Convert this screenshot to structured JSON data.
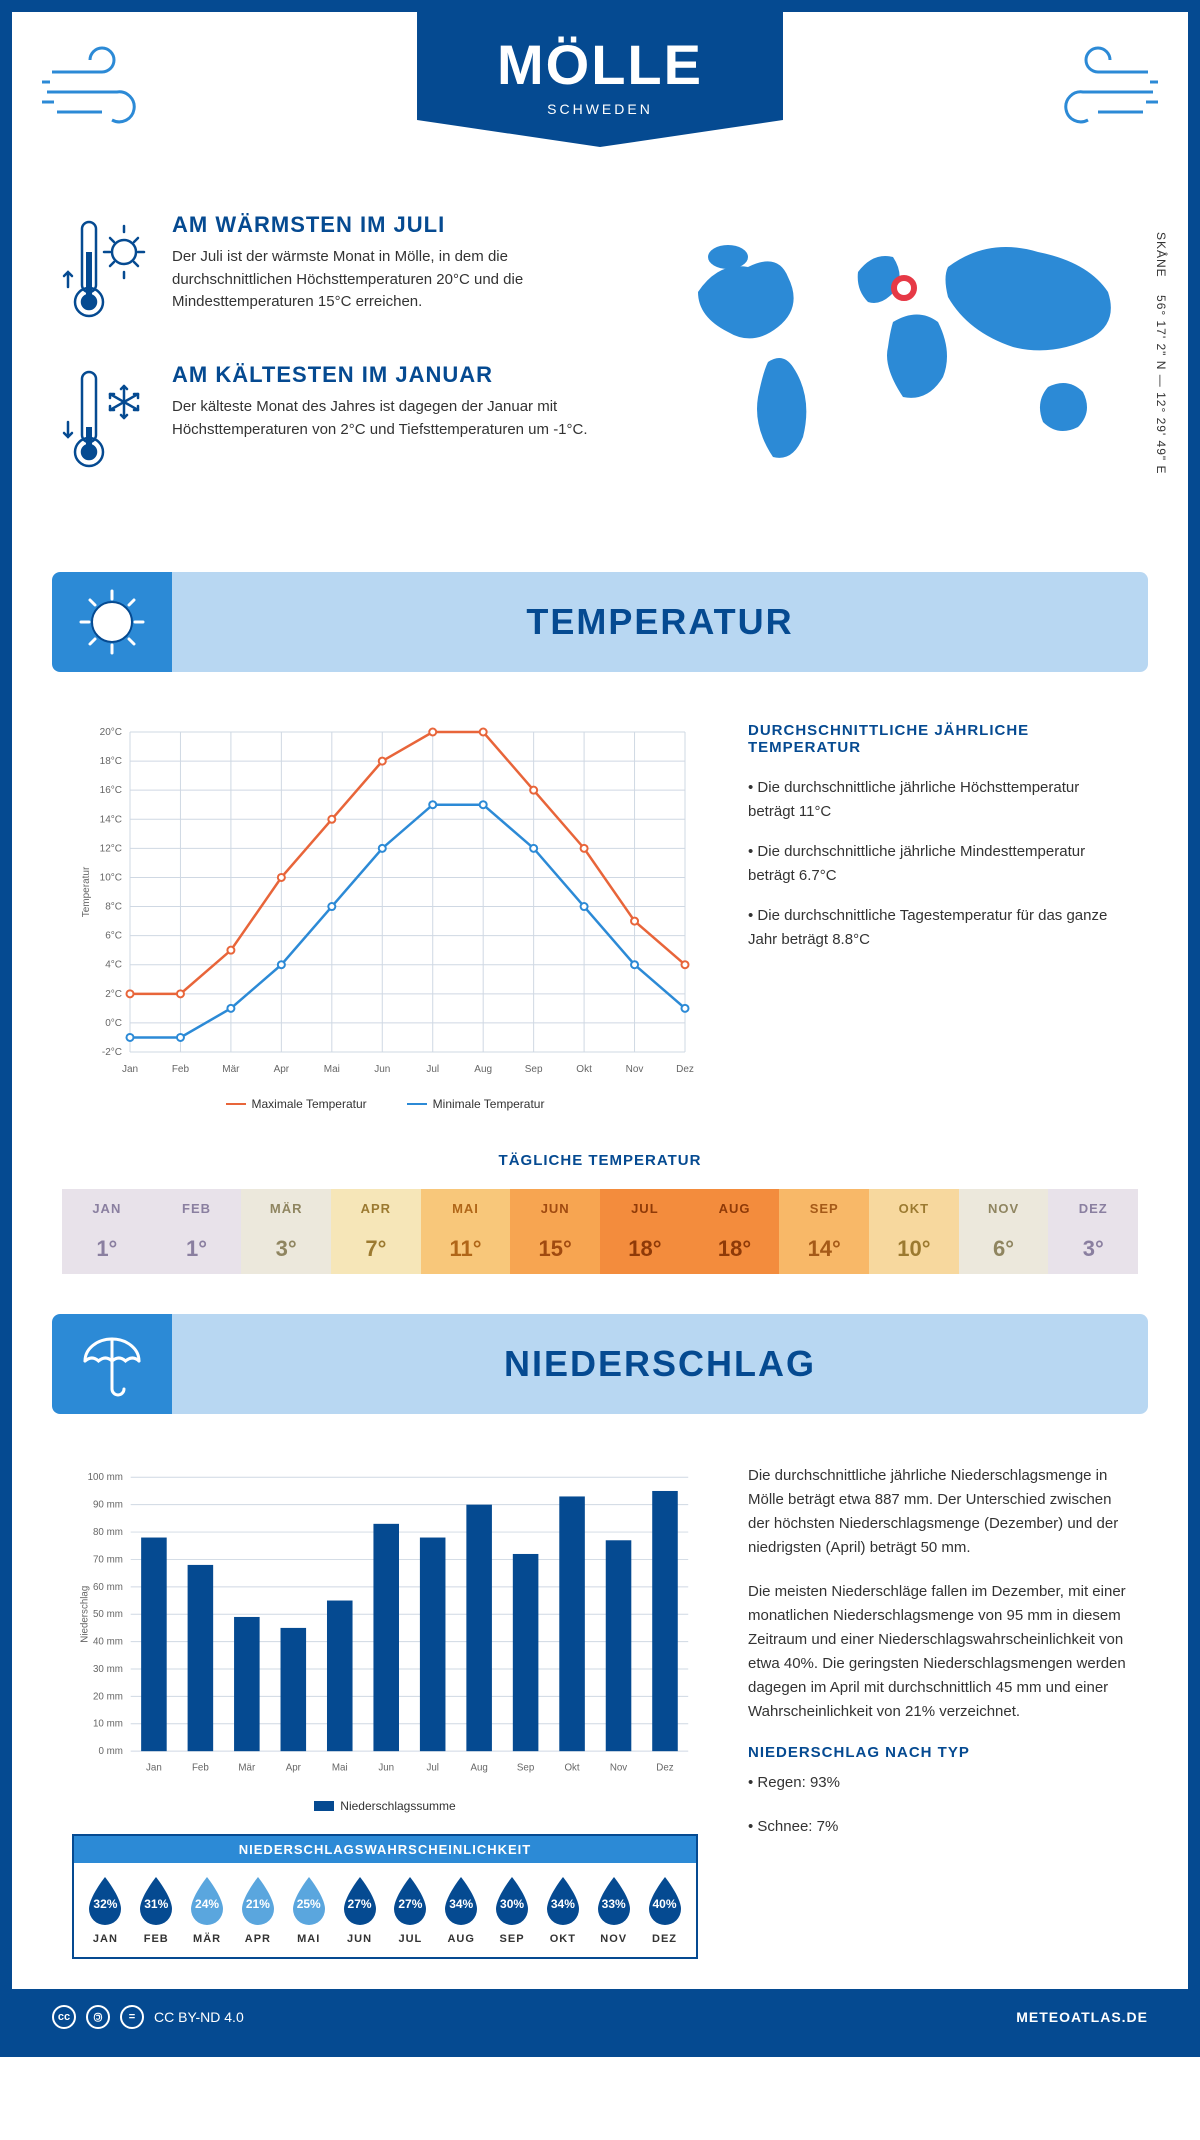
{
  "header": {
    "title": "MÖLLE",
    "country": "SCHWEDEN"
  },
  "coords": {
    "lat": "56° 17' 2\" N",
    "lon": "12° 29' 49\" E",
    "region": "SKÅNE"
  },
  "facts": {
    "warm": {
      "title": "AM WÄRMSTEN IM JULI",
      "text": "Der Juli ist der wärmste Monat in Mölle, in dem die durchschnittlichen Höchsttemperaturen 20°C und die Mindesttemperaturen 15°C erreichen."
    },
    "cold": {
      "title": "AM KÄLTESTEN IM JANUAR",
      "text": "Der kälteste Monat des Jahres ist dagegen der Januar mit Höchsttemperaturen von 2°C und Tiefsttemperaturen um -1°C."
    }
  },
  "colors": {
    "primary": "#054a91",
    "accent": "#2c8ad6",
    "light": "#b8d7f2",
    "high_line": "#e8653a",
    "low_line": "#2c8ad6",
    "bar": "#054a91",
    "grid": "#cfd8e3",
    "drop_dark": "#054a91",
    "drop_light": "#5aa6de",
    "marker": "#e63946"
  },
  "sections": {
    "temp": "TEMPERATUR",
    "precip": "NIEDERSCHLAG"
  },
  "temp_chart": {
    "type": "line",
    "months": [
      "Jan",
      "Feb",
      "Mär",
      "Apr",
      "Mai",
      "Jun",
      "Jul",
      "Aug",
      "Sep",
      "Okt",
      "Nov",
      "Dez"
    ],
    "max": [
      2,
      2,
      5,
      10,
      14,
      18,
      20,
      20,
      16,
      12,
      7,
      4
    ],
    "min": [
      -1,
      -1,
      1,
      4,
      8,
      12,
      15,
      15,
      12,
      8,
      4,
      1
    ],
    "ylim": [
      -2,
      20
    ],
    "ytick_step": 2,
    "ylabel": "Temperatur",
    "legend_max": "Maximale Temperatur",
    "legend_min": "Minimale Temperatur"
  },
  "temp_text": {
    "title": "DURCHSCHNITTLICHE JÄHRLICHE TEMPERATUR",
    "b1": "• Die durchschnittliche jährliche Höchsttemperatur beträgt 11°C",
    "b2": "• Die durchschnittliche jährliche Mindesttemperatur beträgt 6.7°C",
    "b3": "• Die durchschnittliche Tagestemperatur für das ganze Jahr beträgt 8.8°C"
  },
  "daily": {
    "title": "TÄGLICHE TEMPERATUR",
    "months": [
      "JAN",
      "FEB",
      "MÄR",
      "APR",
      "MAI",
      "JUN",
      "JUL",
      "AUG",
      "SEP",
      "OKT",
      "NOV",
      "DEZ"
    ],
    "values": [
      "1°",
      "1°",
      "3°",
      "7°",
      "11°",
      "15°",
      "18°",
      "18°",
      "14°",
      "10°",
      "6°",
      "3°"
    ],
    "bg": [
      "#e8e2ea",
      "#e8e2ea",
      "#ece8dc",
      "#f6e6b8",
      "#f8c77a",
      "#f7a551",
      "#f38c3d",
      "#f38c3d",
      "#f8b868",
      "#f7d89e",
      "#ece8dc",
      "#e8e2ea"
    ],
    "fg": [
      "#8a7fa0",
      "#8a7fa0",
      "#8f8560",
      "#9c7a30",
      "#b06618",
      "#a04a10",
      "#8f3a08",
      "#8f3a08",
      "#a55a18",
      "#9c7a30",
      "#8f8560",
      "#8a7fa0"
    ]
  },
  "precip_chart": {
    "type": "bar",
    "months": [
      "Jan",
      "Feb",
      "Mär",
      "Apr",
      "Mai",
      "Jun",
      "Jul",
      "Aug",
      "Sep",
      "Okt",
      "Nov",
      "Dez"
    ],
    "values": [
      78,
      68,
      49,
      45,
      55,
      83,
      78,
      90,
      72,
      93,
      77,
      95
    ],
    "ylim": [
      0,
      100
    ],
    "ytick_step": 10,
    "ylabel": "Niederschlag",
    "legend": "Niederschlagssumme"
  },
  "precip_text": {
    "p1": "Die durchschnittliche jährliche Niederschlagsmenge in Mölle beträgt etwa 887 mm. Der Unterschied zwischen der höchsten Niederschlagsmenge (Dezember) und der niedrigsten (April) beträgt 50 mm.",
    "p2": "Die meisten Niederschläge fallen im Dezember, mit einer monatlichen Niederschlagsmenge von 95 mm in diesem Zeitraum und einer Niederschlagswahrscheinlichkeit von etwa 40%. Die geringsten Niederschlagsmengen werden dagegen im April mit durchschnittlich 45 mm und einer Wahrscheinlichkeit von 21% verzeichnet.",
    "type_title": "NIEDERSCHLAG NACH TYP",
    "type1": "• Regen: 93%",
    "type2": "• Schnee: 7%"
  },
  "prob": {
    "title": "NIEDERSCHLAGSWAHRSCHEINLICHKEIT",
    "months": [
      "JAN",
      "FEB",
      "MÄR",
      "APR",
      "MAI",
      "JUN",
      "JUL",
      "AUG",
      "SEP",
      "OKT",
      "NOV",
      "DEZ"
    ],
    "values": [
      "32%",
      "31%",
      "24%",
      "21%",
      "25%",
      "27%",
      "27%",
      "34%",
      "30%",
      "34%",
      "33%",
      "40%"
    ],
    "dark": [
      true,
      true,
      false,
      false,
      false,
      true,
      true,
      true,
      true,
      true,
      true,
      true
    ]
  },
  "footer": {
    "license": "CC BY-ND 4.0",
    "site": "METEOATLAS.DE"
  }
}
